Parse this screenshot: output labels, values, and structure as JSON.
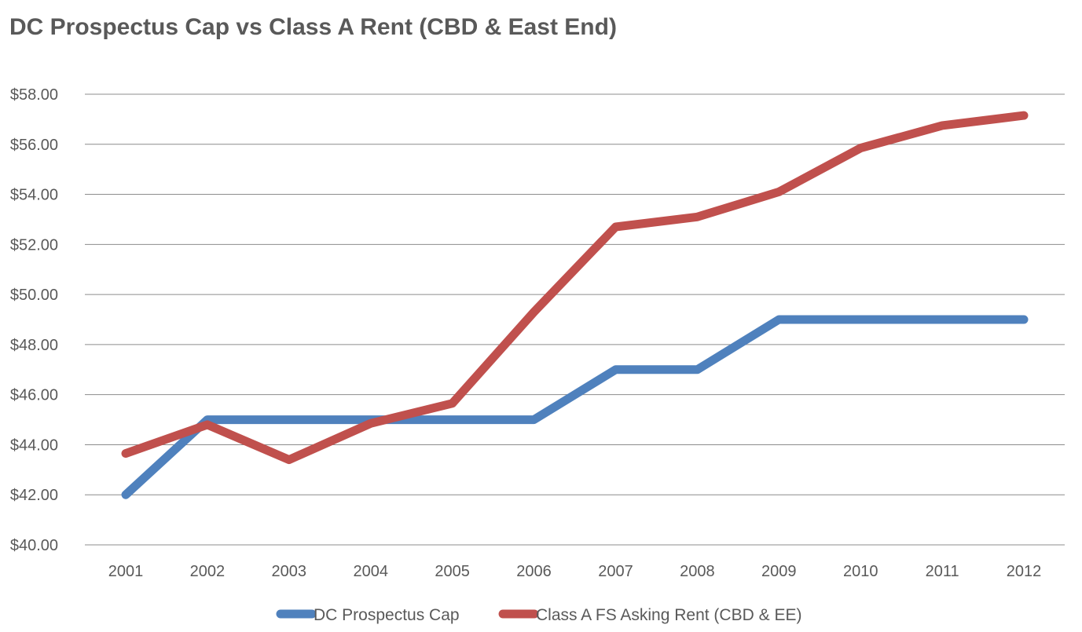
{
  "chart_data": {
    "type": "line",
    "title": "DC Prospectus Cap vs Class A Rent (CBD & East End)",
    "xlabel": "",
    "ylabel": "",
    "categories": [
      "2001",
      "2002",
      "2003",
      "2004",
      "2005",
      "2006",
      "2007",
      "2008",
      "2009",
      "2010",
      "2011",
      "2012"
    ],
    "ylim": [
      40,
      58
    ],
    "yticks": [
      40,
      42,
      44,
      46,
      48,
      50,
      52,
      54,
      56,
      58
    ],
    "ytick_labels": [
      "$40.00",
      "$42.00",
      "$44.00",
      "$46.00",
      "$48.00",
      "$50.00",
      "$52.00",
      "$54.00",
      "$56.00",
      "$58.00"
    ],
    "grid": true,
    "legend_position": "bottom",
    "series": [
      {
        "name": "DC Prospectus Cap",
        "color": "#4f81bd",
        "values": [
          42,
          45,
          45,
          45,
          45,
          45,
          47,
          47,
          49,
          49,
          49,
          49
        ]
      },
      {
        "name": "Class A FS Asking Rent (CBD & EE)",
        "color": "#c0504d",
        "values": [
          43.65,
          44.8,
          43.4,
          44.85,
          45.65,
          49.3,
          52.7,
          53.1,
          54.1,
          55.85,
          56.75,
          57.15
        ]
      }
    ]
  }
}
